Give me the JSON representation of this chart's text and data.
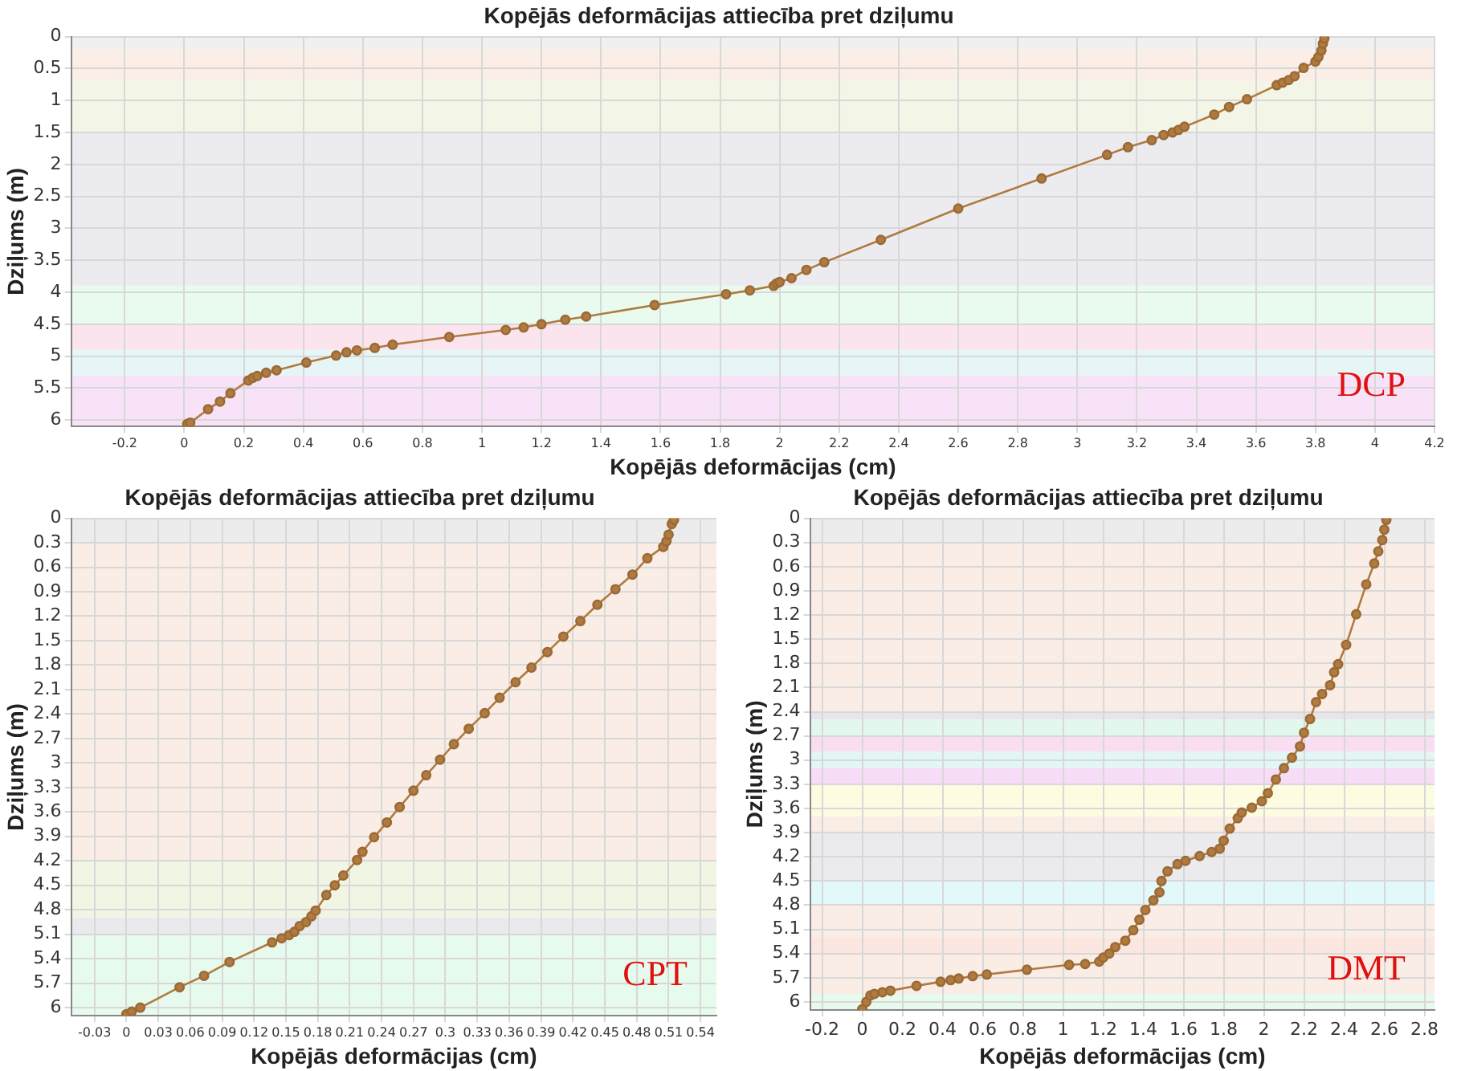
{
  "chart_data": [
    {
      "type": "line",
      "title": "Kopējās deformācijas attiecība pret dziļumu",
      "xlabel": "Kopējās deformācijas (cm)",
      "ylabel": "Dziļums (m)",
      "xlim": [
        -0.38,
        4.2
      ],
      "xticks": [
        -0.2,
        0,
        0.2,
        0.4,
        0.6,
        0.8,
        1,
        1.2,
        1.4,
        1.6,
        1.8,
        2,
        2.2,
        2.4,
        2.6,
        2.8,
        3,
        3.2,
        3.4,
        3.6,
        3.8,
        4,
        4.2
      ],
      "ylim": [
        6.1,
        0
      ],
      "yticks": [
        0,
        0.5,
        1,
        1.5,
        2,
        2.5,
        3,
        3.5,
        4,
        4.5,
        5,
        5.5,
        6
      ],
      "grid": true,
      "marker": "circle",
      "line_style": "solid",
      "annotations": [
        "DCP"
      ],
      "bands": [
        {
          "axis": "y",
          "from": 0,
          "to": 0.2,
          "color": "#f0f0f0"
        },
        {
          "axis": "y",
          "from": 0.2,
          "to": 0.7,
          "color": "#fbeee6"
        },
        {
          "axis": "y",
          "from": 0.7,
          "to": 1.5,
          "color": "#f3f6e6"
        },
        {
          "axis": "y",
          "from": 1.5,
          "to": 3.9,
          "color": "#ececf0"
        },
        {
          "axis": "y",
          "from": 3.9,
          "to": 4.5,
          "color": "#e8fbee"
        },
        {
          "axis": "y",
          "from": 4.5,
          "to": 4.9,
          "color": "#fbe4ee"
        },
        {
          "axis": "y",
          "from": 4.9,
          "to": 5.3,
          "color": "#e6f6f6"
        },
        {
          "axis": "y",
          "from": 5.3,
          "to": 6.1,
          "color": "#f8e2f8"
        }
      ],
      "series": [
        {
          "color": "#b07a40",
          "x": [
            0.01,
            0.02,
            0.08,
            0.12,
            0.155,
            0.215,
            0.23,
            0.245,
            0.275,
            0.31,
            0.41,
            0.51,
            0.545,
            0.58,
            0.64,
            0.7,
            0.89,
            1.08,
            1.14,
            1.2,
            1.28,
            1.35,
            1.58,
            1.82,
            1.9,
            1.98,
            1.99,
            2.0,
            2.04,
            2.09,
            2.15,
            2.34,
            2.6,
            2.88,
            3.1,
            3.17,
            3.25,
            3.29,
            3.32,
            3.34,
            3.36,
            3.46,
            3.51,
            3.57,
            3.67,
            3.69,
            3.71,
            3.73,
            3.76,
            3.8,
            3.81,
            3.82,
            3.825,
            3.83
          ],
          "values": [
            6.06,
            6.04,
            5.83,
            5.71,
            5.58,
            5.38,
            5.34,
            5.31,
            5.26,
            5.22,
            5.1,
            4.99,
            4.94,
            4.91,
            4.87,
            4.82,
            4.7,
            4.59,
            4.55,
            4.5,
            4.43,
            4.38,
            4.2,
            4.03,
            3.97,
            3.9,
            3.86,
            3.84,
            3.78,
            3.65,
            3.53,
            3.18,
            2.69,
            2.22,
            1.85,
            1.73,
            1.62,
            1.54,
            1.5,
            1.46,
            1.41,
            1.22,
            1.1,
            0.98,
            0.76,
            0.72,
            0.68,
            0.62,
            0.49,
            0.39,
            0.32,
            0.22,
            0.11,
            0.03
          ]
        }
      ]
    },
    {
      "type": "line",
      "title": "Kopējās deformācijas attiecība pret dziļumu",
      "xlabel": "Kopējās deformācijas (cm)",
      "ylabel": "Dziļums (m)",
      "xlim": [
        -0.052,
        0.555
      ],
      "xticks": [
        -0.03,
        0,
        0.03,
        0.06,
        0.09,
        0.12,
        0.15,
        0.18,
        0.21,
        0.24,
        0.27,
        0.3,
        0.33,
        0.36,
        0.39,
        0.42,
        0.45,
        0.48,
        0.51,
        0.54
      ],
      "ylim": [
        6.1,
        0
      ],
      "yticks": [
        0,
        0.3,
        0.6,
        0.9,
        1.2,
        1.5,
        1.8,
        2.1,
        2.4,
        2.7,
        3,
        3.3,
        3.6,
        3.9,
        4.2,
        4.5,
        4.8,
        5.1,
        5.4,
        5.7,
        6
      ],
      "grid": true,
      "marker": "circle",
      "line_style": "solid",
      "annotations": [
        "CPT"
      ],
      "bands": [
        {
          "axis": "y",
          "from": 0,
          "to": 0.3,
          "color": "#ececec"
        },
        {
          "axis": "y",
          "from": 0.3,
          "to": 4.2,
          "color": "#f9ede5"
        },
        {
          "axis": "y",
          "from": 4.2,
          "to": 4.9,
          "color": "#f1f5e4"
        },
        {
          "axis": "y",
          "from": 4.9,
          "to": 5.1,
          "color": "#e9e9ee"
        },
        {
          "axis": "y",
          "from": 5.1,
          "to": 6.1,
          "color": "#e6faed"
        }
      ],
      "series": [
        {
          "color": "#b07a40",
          "x": [
            0,
            0.005,
            0.013,
            0.05,
            0.073,
            0.097,
            0.137,
            0.146,
            0.153,
            0.158,
            0.163,
            0.169,
            0.174,
            0.178,
            0.188,
            0.196,
            0.204,
            0.217,
            0.222,
            0.233,
            0.245,
            0.257,
            0.27,
            0.282,
            0.295,
            0.308,
            0.322,
            0.337,
            0.351,
            0.366,
            0.381,
            0.396,
            0.411,
            0.427,
            0.443,
            0.46,
            0.476,
            0.49,
            0.505,
            0.508,
            0.51,
            0.513,
            0.515
          ],
          "values": [
            6.08,
            6.05,
            6.0,
            5.75,
            5.61,
            5.44,
            5.2,
            5.15,
            5.11,
            5.07,
            5.0,
            4.95,
            4.88,
            4.81,
            4.62,
            4.5,
            4.38,
            4.19,
            4.09,
            3.91,
            3.73,
            3.54,
            3.34,
            3.15,
            2.96,
            2.77,
            2.58,
            2.39,
            2.2,
            2.01,
            1.83,
            1.64,
            1.45,
            1.26,
            1.06,
            0.87,
            0.69,
            0.49,
            0.35,
            0.28,
            0.2,
            0.07,
            0.02
          ]
        }
      ]
    },
    {
      "type": "line",
      "title": "Kopējās deformācijas attiecība pret dziļumu",
      "xlabel": "Kopējās deformācijas (cm)",
      "ylabel": "Dziļums (m)",
      "xlim": [
        -0.26,
        2.85
      ],
      "xticks": [
        -0.2,
        0,
        0.2,
        0.4,
        0.6,
        0.8,
        1,
        1.2,
        1.4,
        1.6,
        1.8,
        2,
        2.2,
        2.4,
        2.6,
        2.8
      ],
      "ylim": [
        6.1,
        0
      ],
      "yticks": [
        0,
        0.3,
        0.6,
        0.9,
        1.2,
        1.5,
        1.8,
        2.1,
        2.4,
        2.7,
        3,
        3.3,
        3.6,
        3.9,
        4.2,
        4.5,
        4.8,
        5.1,
        5.4,
        5.7,
        6
      ],
      "grid": true,
      "marker": "circle",
      "line_style": "solid",
      "annotations": [
        "DMT"
      ],
      "bands": [
        {
          "axis": "y",
          "from": 0,
          "to": 0.3,
          "color": "#ececec"
        },
        {
          "axis": "y",
          "from": 0.3,
          "to": 2.4,
          "color": "#f9ede5"
        },
        {
          "axis": "y",
          "from": 2.4,
          "to": 2.5,
          "color": "#e6e6ea"
        },
        {
          "axis": "y",
          "from": 2.5,
          "to": 2.7,
          "color": "#e3f8ec"
        },
        {
          "axis": "y",
          "from": 2.7,
          "to": 2.9,
          "color": "#f8def0"
        },
        {
          "axis": "y",
          "from": 2.9,
          "to": 3.1,
          "color": "#e3f6f6"
        },
        {
          "axis": "y",
          "from": 3.1,
          "to": 3.3,
          "color": "#f6dcf6"
        },
        {
          "axis": "y",
          "from": 3.3,
          "to": 3.7,
          "color": "#fdfbe0"
        },
        {
          "axis": "y",
          "from": 3.7,
          "to": 3.9,
          "color": "#f9ede5"
        },
        {
          "axis": "y",
          "from": 3.9,
          "to": 4.5,
          "color": "#ebebee"
        },
        {
          "axis": "y",
          "from": 4.5,
          "to": 4.8,
          "color": "#e3f8fa"
        },
        {
          "axis": "y",
          "from": 4.8,
          "to": 5.2,
          "color": "#f9ede5"
        },
        {
          "axis": "y",
          "from": 5.2,
          "to": 5.4,
          "color": "#fbe6e0"
        },
        {
          "axis": "y",
          "from": 5.4,
          "to": 5.9,
          "color": "#f9ede5"
        },
        {
          "axis": "y",
          "from": 5.9,
          "to": 6.1,
          "color": "#e6faed"
        }
      ],
      "series": [
        {
          "color": "#b07a40",
          "x": [
            0,
            0.02,
            0.04,
            0.06,
            0.1,
            0.14,
            0.27,
            0.39,
            0.44,
            0.48,
            0.55,
            0.62,
            0.82,
            1.03,
            1.11,
            1.18,
            1.2,
            1.23,
            1.26,
            1.31,
            1.35,
            1.38,
            1.41,
            1.45,
            1.48,
            1.49,
            1.52,
            1.57,
            1.61,
            1.68,
            1.74,
            1.78,
            1.8,
            1.83,
            1.87,
            1.89,
            1.94,
            1.99,
            2.02,
            2.06,
            2.1,
            2.14,
            2.18,
            2.2,
            2.23,
            2.26,
            2.29,
            2.33,
            2.35,
            2.37,
            2.41,
            2.46,
            2.51,
            2.55,
            2.57,
            2.59,
            2.6,
            2.61
          ],
          "values": [
            6.09,
            6.0,
            5.92,
            5.9,
            5.88,
            5.86,
            5.8,
            5.75,
            5.73,
            5.71,
            5.68,
            5.66,
            5.6,
            5.54,
            5.53,
            5.5,
            5.45,
            5.4,
            5.32,
            5.24,
            5.11,
            4.98,
            4.86,
            4.74,
            4.64,
            4.5,
            4.38,
            4.29,
            4.25,
            4.19,
            4.14,
            4.1,
            4.0,
            3.85,
            3.72,
            3.65,
            3.59,
            3.51,
            3.41,
            3.24,
            3.1,
            2.97,
            2.83,
            2.66,
            2.49,
            2.28,
            2.18,
            2.07,
            1.91,
            1.81,
            1.57,
            1.19,
            0.82,
            0.56,
            0.41,
            0.27,
            0.14,
            0.02
          ]
        }
      ]
    }
  ]
}
